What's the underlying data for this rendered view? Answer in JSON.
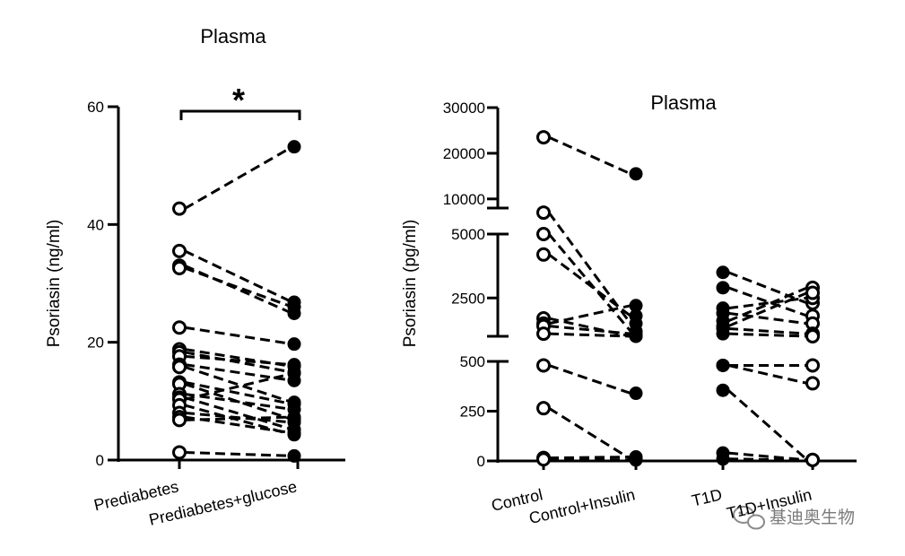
{
  "watermark": {
    "text": "基迪奥生物",
    "icon": "wechat-icon",
    "color": "#8a8a8a"
  },
  "chart_data": [
    {
      "type": "scatter",
      "title": "Plasma",
      "ylabel": "Psoriasin (ng/ml)",
      "categories": [
        "Prediabetes",
        "Prediabetes+glucose"
      ],
      "yticks": [
        "0",
        "20",
        "40",
        "60"
      ],
      "ylim": [
        0,
        60
      ],
      "significance": "*",
      "line_style": "dashed",
      "pairs": [
        [
          42.7,
          53.2
        ],
        [
          35.5,
          26.8
        ],
        [
          33.0,
          24.9
        ],
        [
          32.6,
          26.0
        ],
        [
          22.5,
          19.7
        ],
        [
          18.8,
          15.9
        ],
        [
          18.3,
          14.9
        ],
        [
          17.6,
          16.2
        ],
        [
          16.2,
          13.5
        ],
        [
          15.8,
          9.8
        ],
        [
          13.2,
          9.5
        ],
        [
          12.9,
          6.9
        ],
        [
          11.2,
          8.6
        ],
        [
          10.6,
          5.2
        ],
        [
          10.3,
          14.7
        ],
        [
          9.3,
          4.3
        ],
        [
          8.0,
          6.4
        ],
        [
          7.3,
          4.6
        ],
        [
          6.8,
          7.3
        ],
        [
          1.3,
          0.7
        ]
      ]
    },
    {
      "type": "scatter",
      "title": "Plasma",
      "ylabel": "Psoriasin (pg/ml)",
      "categories": [
        "Control",
        "Control+Insulin",
        "T1D",
        "T1D+Insulin"
      ],
      "yticks": [
        "0",
        "250",
        "500",
        "2500",
        "5000",
        "10000",
        "20000",
        "30000"
      ],
      "y_axis": "broken",
      "line_style": "dashed",
      "groups": [
        {
          "from": "Control",
          "to": "Control+Insulin",
          "pairs": [
            [
              23500,
              15500
            ],
            [
              7000,
              1500
            ],
            [
              5000,
              1200
            ],
            [
              4200,
              1800
            ],
            [
              1700,
              1000
            ],
            [
              1500,
              2200
            ],
            [
              1400,
              1100
            ],
            [
              1100,
              1000
            ],
            [
              480,
              340
            ],
            [
              265,
              10
            ],
            [
              15,
              20
            ],
            [
              8,
              5
            ]
          ]
        },
        {
          "from": "T1D",
          "to": "T1D+Insulin",
          "pairs": [
            [
              3500,
              2300
            ],
            [
              2900,
              1800
            ],
            [
              2100,
              2500
            ],
            [
              1900,
              1500
            ],
            [
              1600,
              2900
            ],
            [
              1400,
              2700
            ],
            [
              1300,
              1100
            ],
            [
              1100,
              1000
            ],
            [
              480,
              480
            ],
            [
              480,
              390
            ],
            [
              355,
              5
            ],
            [
              40,
              5
            ],
            [
              10,
              5
            ]
          ]
        }
      ]
    }
  ]
}
